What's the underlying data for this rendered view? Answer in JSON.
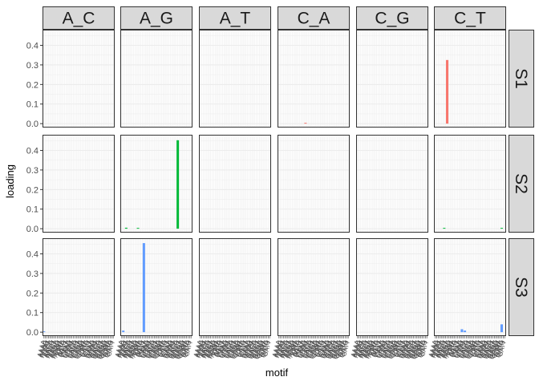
{
  "chart_data": {
    "type": "bar",
    "facet_cols": [
      "A_C",
      "A_G",
      "A_T",
      "C_A",
      "C_G",
      "C_T"
    ],
    "facet_rows": [
      "S1",
      "S2",
      "S3"
    ],
    "xlabel": "motif",
    "ylabel": "loading",
    "ylim": [
      -0.02,
      0.48
    ],
    "yticks": [
      0.0,
      0.1,
      0.2,
      0.3,
      0.4
    ],
    "ytick_labels": [
      "0.0",
      "0.1",
      "0.2",
      "0.3",
      "0.4"
    ],
    "motifs_per_panel": 48,
    "x_tick_labels": [
      "AAAA",
      "AAAC",
      "AAAG",
      "AAAT",
      "AACA",
      "AACC",
      "AACG",
      "AACT",
      "AAGA",
      "AAGC",
      "AAGG",
      "AAGT",
      "AATA",
      "AATC",
      "AATG",
      "AATT",
      "CAAA",
      "CAAC",
      "CAAG",
      "CAAT",
      "CACA",
      "CACC",
      "CACG",
      "CACT",
      "CAGA",
      "CAGC",
      "CAGG",
      "CAGT",
      "CATA",
      "CATC",
      "CATG",
      "CATT",
      "GAAA",
      "GAAC",
      "GAAG",
      "GAAT",
      "GACA",
      "GACC",
      "GACG",
      "GACT",
      "GAGA",
      "GAGC",
      "GAGG",
      "GAGT",
      "GATA",
      "GATC",
      "GATG",
      "GATT"
    ],
    "series_colors": {
      "S1": "#F8766D",
      "S2": "#00BA38",
      "S3": "#619CFF"
    },
    "grid": true,
    "bars": [
      {
        "row": "S1",
        "col": "C_A",
        "motif_index": 18,
        "value": 0.003
      },
      {
        "row": "S1",
        "col": "C_T",
        "motif_index": 8,
        "value": 0.325
      },
      {
        "row": "S2",
        "col": "A_G",
        "motif_index": 3,
        "value": 0.005
      },
      {
        "row": "S2",
        "col": "A_G",
        "motif_index": 11,
        "value": 0.004
      },
      {
        "row": "S2",
        "col": "A_G",
        "motif_index": 38,
        "value": 0.452
      },
      {
        "row": "S2",
        "col": "C_T",
        "motif_index": 6,
        "value": 0.004
      },
      {
        "row": "S2",
        "col": "C_T",
        "motif_index": 45,
        "value": 0.003
      },
      {
        "row": "S3",
        "col": "A_C",
        "motif_index": 0,
        "value": 0.003
      },
      {
        "row": "S3",
        "col": "A_G",
        "motif_index": 1,
        "value": 0.008
      },
      {
        "row": "S3",
        "col": "A_G",
        "motif_index": 15,
        "value": 0.455
      },
      {
        "row": "S3",
        "col": "C_T",
        "motif_index": 18,
        "value": 0.015
      },
      {
        "row": "S3",
        "col": "C_T",
        "motif_index": 20,
        "value": 0.008
      },
      {
        "row": "S3",
        "col": "C_T",
        "motif_index": 45,
        "value": 0.04
      }
    ]
  }
}
